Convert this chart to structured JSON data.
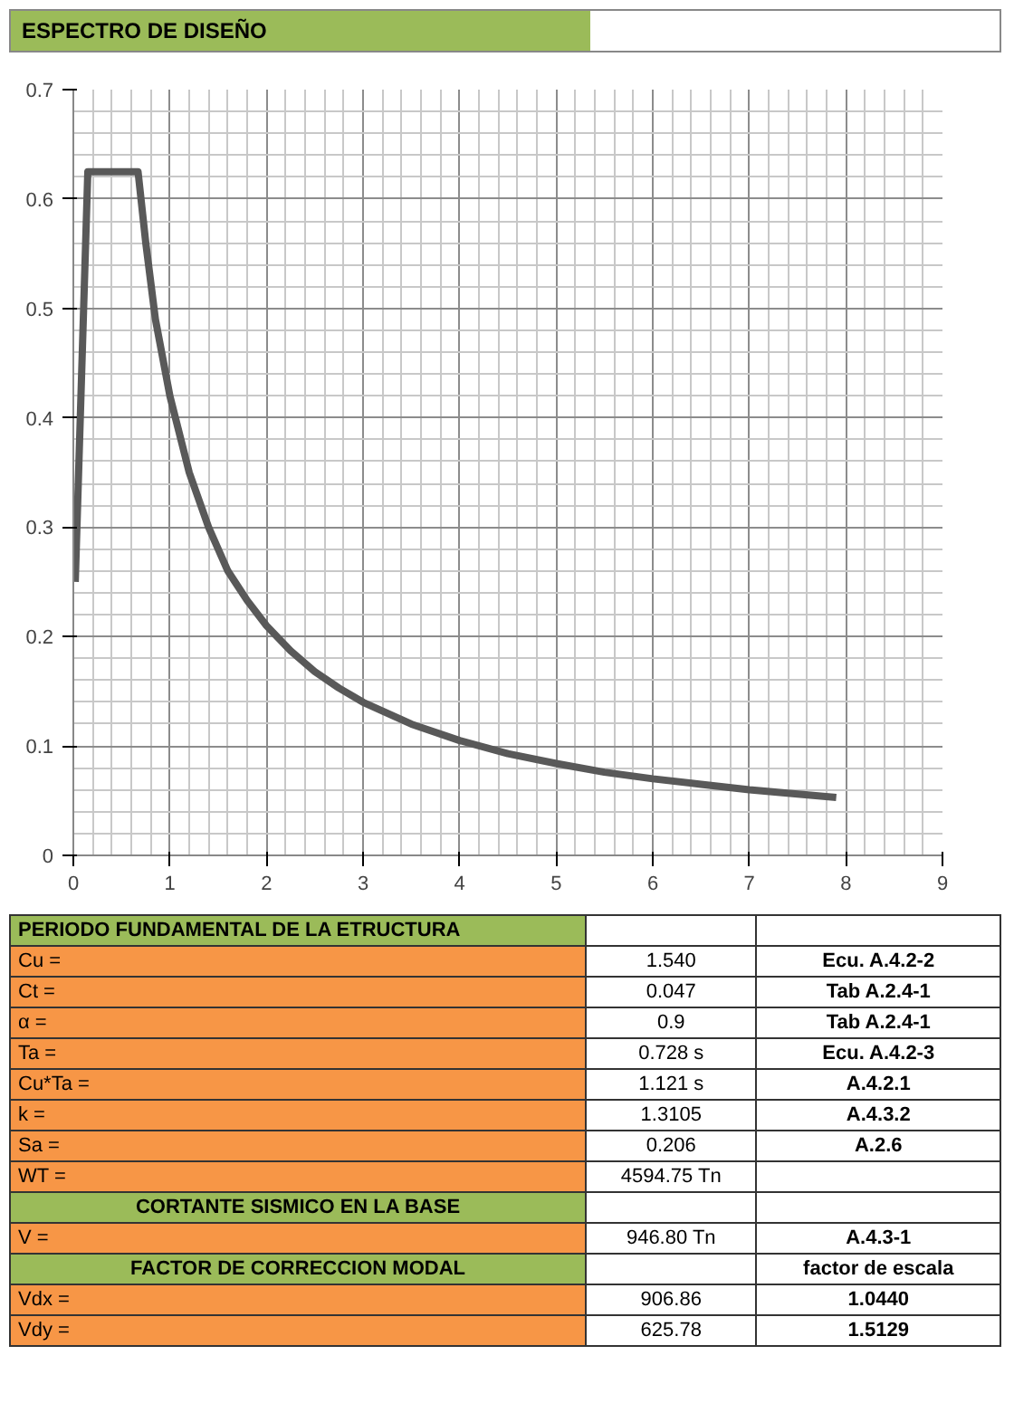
{
  "chart_data": {
    "type": "line",
    "title": "ESPECTRO  DE DISEÑO",
    "x": [
      0.02,
      0.15,
      0.67,
      0.75,
      0.85,
      1,
      1.2,
      1.4,
      1.6,
      1.8,
      2,
      2.25,
      2.5,
      2.75,
      3,
      3.5,
      4,
      4.5,
      5,
      5.5,
      6,
      6.5,
      7,
      7.5,
      7.9
    ],
    "series": [
      {
        "color": "#595959",
        "values": [
          0.25,
          0.625,
          0.625,
          0.56,
          0.49,
          0.42,
          0.35,
          0.3,
          0.26,
          0.233,
          0.21,
          0.187,
          0.168,
          0.153,
          0.14,
          0.12,
          0.105,
          0.093,
          0.084,
          0.076,
          0.07,
          0.065,
          0.06,
          0.056,
          0.053
        ]
      }
    ],
    "xlim": [
      0,
      9
    ],
    "xticks": [
      0,
      1,
      2,
      3,
      4,
      5,
      6,
      7,
      8,
      9
    ],
    "ylim": [
      0,
      0.7
    ],
    "yticks": [
      0,
      0.1,
      0.2,
      0.3,
      0.4,
      0.5,
      0.6,
      0.7
    ],
    "grid": true,
    "marker": "none",
    "line_style": "solid",
    "annotations": [
      "PERIODO FUNDAMENTAL DE LA ETRUCTURA",
      "Cu =",
      "1.540",
      "Ecu. A.4.2-2",
      "Ct =",
      "0.047",
      "Tab A.2.4-1",
      "α =",
      "0.9",
      "Tab A.2.4-1",
      "Ta =",
      "0.728 s",
      "Ecu. A.4.2-3",
      "Cu*Ta =",
      "1.121 s",
      "A.4.2.1",
      "k =",
      "1.3105",
      "A.4.3.2",
      "Sa =",
      "0.206",
      "A.2.6",
      "WT =",
      "4594.75 Tn",
      "CORTANTE SISMICO EN LA BASE",
      "V =",
      "946.80 Tn",
      "A.4.3-1",
      "FACTOR DE CORRECCION MODAL",
      "factor de escala",
      "Vdx =",
      "906.86",
      "1.0440",
      "Vdy =",
      "625.78",
      "1.5129"
    ]
  }
}
